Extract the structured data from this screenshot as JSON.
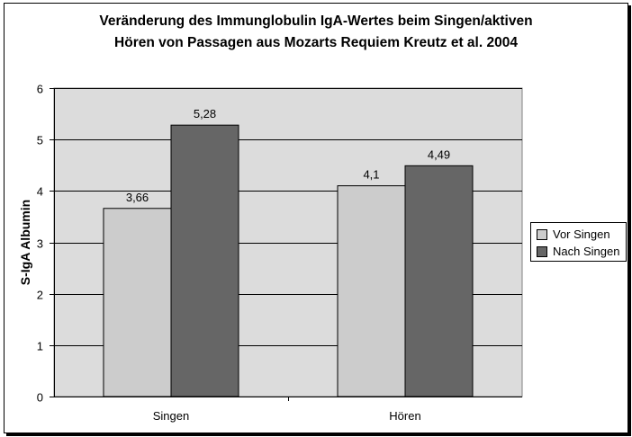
{
  "colors": {
    "plot_bg": "#dcdcdc",
    "vor": "#cccccc",
    "nach": "#666666",
    "gridline": "#000000"
  },
  "chart_data": {
    "type": "bar",
    "title_lines": [
      "Veränderung des Immunglobulin IgA-Wertes beim Singen/aktiven",
      "Hören von Passagen aus Mozarts Requiem    Kreutz et al. 2004"
    ],
    "xlabel": "",
    "ylabel": "S-IgA Albumin",
    "categories": [
      "Singen",
      "Hören"
    ],
    "ylim": [
      0,
      6
    ],
    "yticks": [
      "0",
      "1",
      "2",
      "3",
      "4",
      "5",
      "6"
    ],
    "grid": true,
    "legend_position": "right",
    "series": [
      {
        "name": "Vor Singen",
        "values": [
          3.66,
          4.1
        ],
        "labels": [
          "3,66",
          "4,1"
        ]
      },
      {
        "name": "Nach Singen",
        "values": [
          5.28,
          4.49
        ],
        "labels": [
          "5,28",
          "4,49"
        ]
      }
    ]
  }
}
